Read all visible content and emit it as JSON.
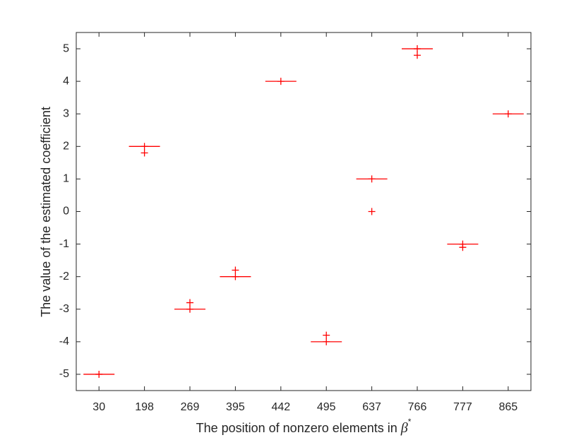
{
  "chart_data": {
    "type": "box",
    "ylabel": "The value of the estimated coefficient",
    "xlabel": {
      "text": "The position of nonzero elements in ",
      "symbol": "β",
      "superscript": "*"
    },
    "categories": [
      "30",
      "198",
      "269",
      "395",
      "442",
      "495",
      "637",
      "766",
      "777",
      "865"
    ],
    "medians": [
      -5,
      2,
      -3,
      -2,
      4,
      -4,
      1,
      5,
      -1,
      3
    ],
    "outliers": [
      [
        -5
      ],
      [
        2,
        1.8
      ],
      [
        -2.8,
        -3
      ],
      [
        -1.8,
        -2
      ],
      [
        4
      ],
      [
        -3.8,
        -4
      ],
      [
        1,
        0
      ],
      [
        5,
        4.8
      ],
      [
        -1,
        -1.1
      ],
      [
        3
      ]
    ],
    "color": "#ff0000",
    "ylim": [
      -5.5,
      5.5
    ],
    "yticks": [
      -5,
      -4,
      -3,
      -2,
      -1,
      0,
      1,
      2,
      3,
      4,
      5
    ]
  }
}
